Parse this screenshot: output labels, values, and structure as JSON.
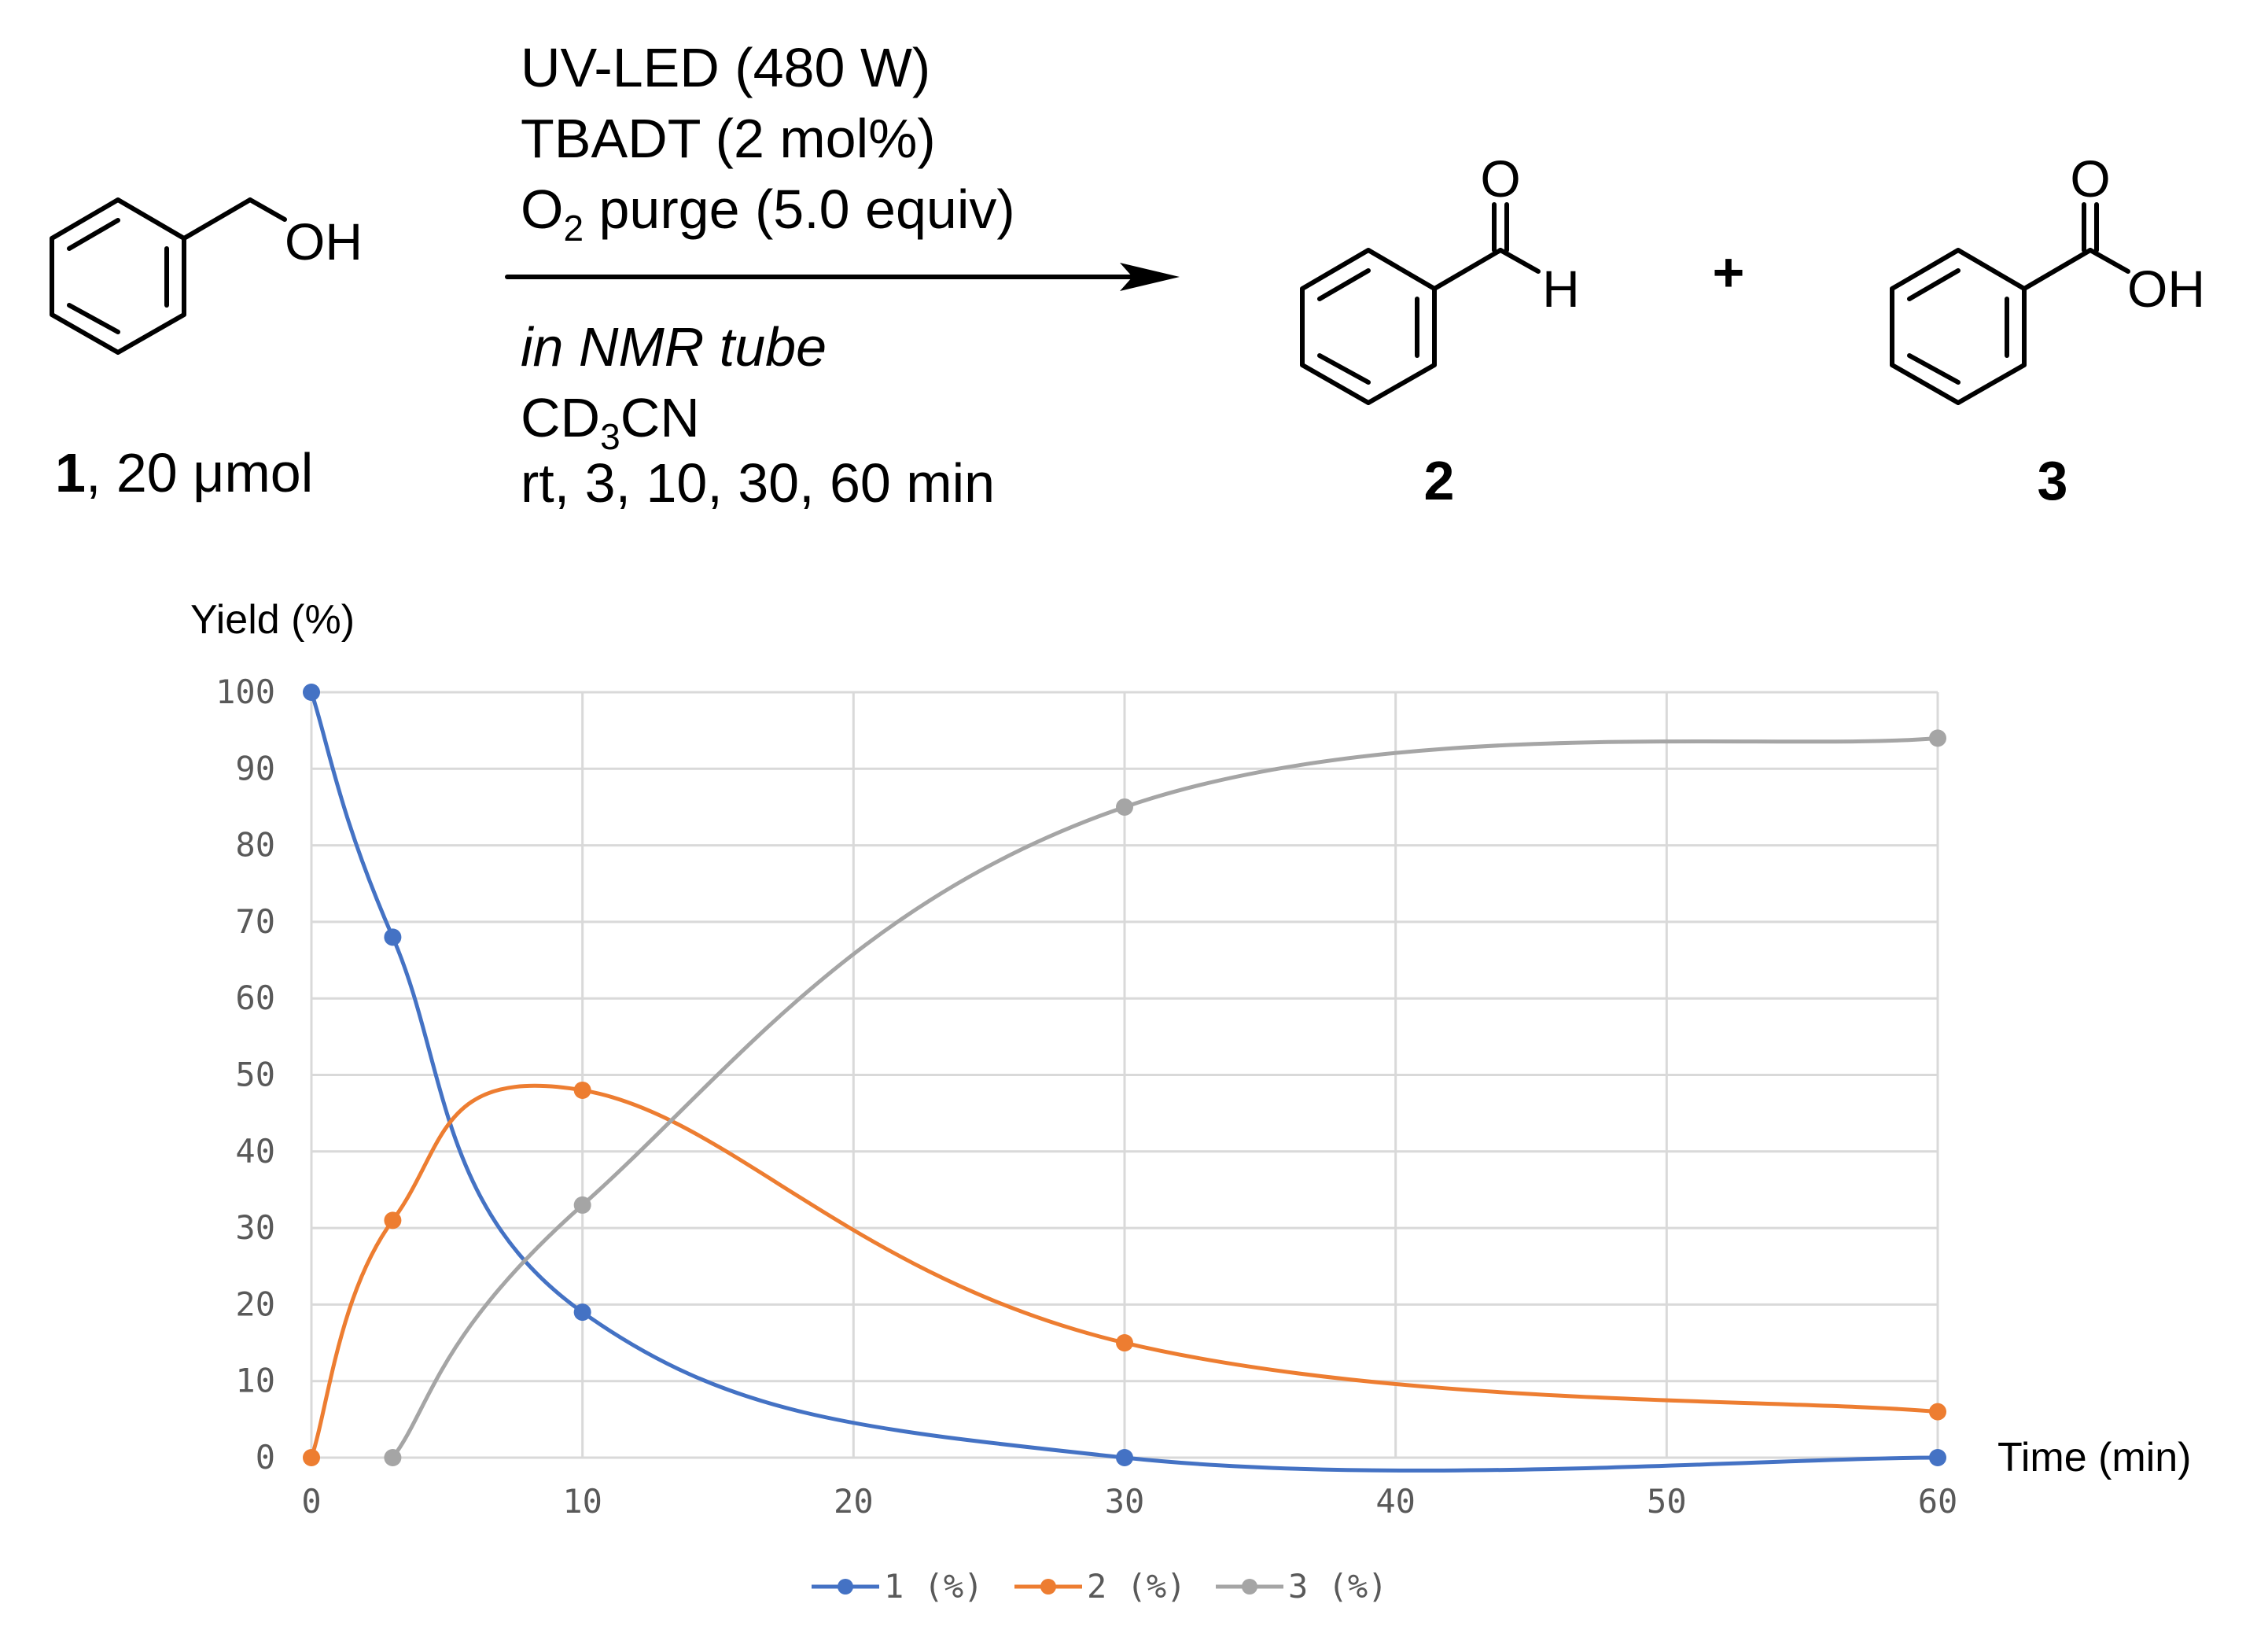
{
  "scheme": {
    "reactant_label_num": "1",
    "reactant_label_rest": ", 20 μmol",
    "reactant_atom_oh": "OH",
    "conditions": {
      "line1": "UV-LED (480 W)",
      "line2": "TBADT (2 mol%)",
      "line3_a": "O",
      "line3_sub": "2",
      "line3_b": " purge (5.0 equiv)",
      "line4": "in NMR tube",
      "line5_a": "CD",
      "line5_sub": "3",
      "line5_b": "CN",
      "line6": "rt, 3, 10, 30, 60 min"
    },
    "product2_label": "2",
    "product2_atom_o": "O",
    "product2_atom_h": "H",
    "plus": "+",
    "product3_label": "3",
    "product3_atom_o": "O",
    "product3_atom_oh": "OH"
  },
  "colors": {
    "series1": "#4472C4",
    "series2": "#ED7D31",
    "series3": "#A5A5A5",
    "grid": "#D9D9D9"
  },
  "chart_data": {
    "type": "line",
    "ylabel": "Yield (%)",
    "xlabel": "Time (min)",
    "xlim": [
      0,
      60
    ],
    "ylim": [
      0,
      100
    ],
    "xticks": [
      0,
      10,
      20,
      30,
      40,
      50,
      60
    ],
    "yticks": [
      0,
      10,
      20,
      30,
      40,
      50,
      60,
      70,
      80,
      90,
      100
    ],
    "grid": true,
    "smooth": true,
    "legend_position": "bottom",
    "series": [
      {
        "name": "1 (%)",
        "x": [
          0,
          3,
          10,
          30,
          60
        ],
        "y": [
          100,
          68,
          19,
          0,
          0
        ]
      },
      {
        "name": "2 (%)",
        "x": [
          0,
          3,
          10,
          30,
          60
        ],
        "y": [
          0,
          31,
          48,
          15,
          6
        ]
      },
      {
        "name": "3 (%)",
        "x": [
          3,
          10,
          30,
          60
        ],
        "y": [
          0,
          33,
          85,
          94
        ]
      }
    ]
  }
}
